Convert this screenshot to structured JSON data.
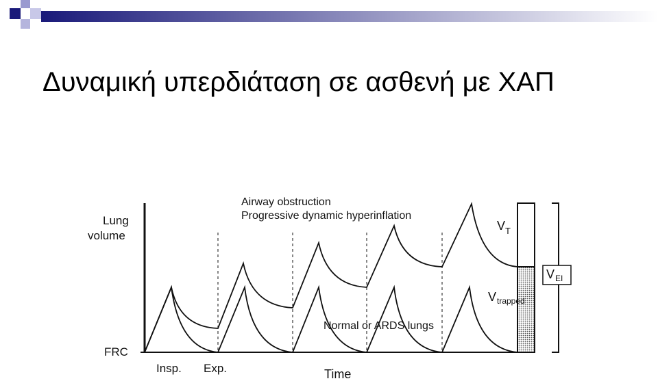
{
  "header": {
    "title": "Δυναμική υπερδιάταση σε ασθενή με ΧΑΠ"
  },
  "diagram": {
    "y_axis_label_line1": "Lung",
    "y_axis_label_line2": "volume",
    "baseline_label": "FRC",
    "insp_label": "Insp.",
    "exp_label": "Exp.",
    "x_axis_label": "Time",
    "annotation_line1": "Airway obstruction",
    "annotation_line2": "Progressive dynamic hyperinflation",
    "normal_label": "Normal or ARDS lungs",
    "vt": {
      "main": "V",
      "sub": "T"
    },
    "vtrapped": {
      "main": "V",
      "sub": "trapped"
    },
    "vei": {
      "main": "V",
      "sub": "EI"
    }
  }
}
